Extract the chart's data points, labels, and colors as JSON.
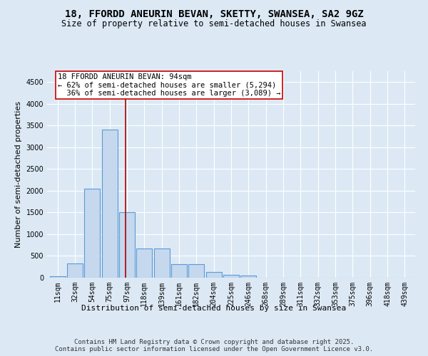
{
  "title1": "18, FFORDD ANEURIN BEVAN, SKETTY, SWANSEA, SA2 9GZ",
  "title2": "Size of property relative to semi-detached houses in Swansea",
  "xlabel": "Distribution of semi-detached houses by size in Swansea",
  "ylabel": "Number of semi-detached properties",
  "categories": [
    "11sqm",
    "32sqm",
    "54sqm",
    "75sqm",
    "97sqm",
    "118sqm",
    "139sqm",
    "161sqm",
    "182sqm",
    "204sqm",
    "225sqm",
    "246sqm",
    "268sqm",
    "289sqm",
    "311sqm",
    "332sqm",
    "353sqm",
    "375sqm",
    "396sqm",
    "418sqm",
    "439sqm"
  ],
  "values": [
    30,
    330,
    2050,
    3400,
    1500,
    670,
    670,
    310,
    310,
    130,
    70,
    50,
    5,
    5,
    0,
    0,
    0,
    0,
    0,
    0,
    0
  ],
  "bar_color": "#c5d8ee",
  "bar_edge_color": "#5b9bd5",
  "vline_x": 3.93,
  "vline_color": "#aa0000",
  "annotation_line1": "18 FFORDD ANEURIN BEVAN: 94sqm",
  "annotation_line2": "← 62% of semi-detached houses are smaller (5,294)",
  "annotation_line3": "  36% of semi-detached houses are larger (3,089) →",
  "annotation_box_color": "#ffffff",
  "annotation_box_edgecolor": "#cc0000",
  "ylim": [
    0,
    4750
  ],
  "yticks": [
    0,
    500,
    1000,
    1500,
    2000,
    2500,
    3000,
    3500,
    4000,
    4500
  ],
  "bg_color": "#dce9f5",
  "grid_color": "#ffffff",
  "footer": "Contains HM Land Registry data © Crown copyright and database right 2025.\nContains public sector information licensed under the Open Government Licence v3.0.",
  "title_fontsize": 10,
  "subtitle_fontsize": 8.5,
  "ylabel_fontsize": 8,
  "xlabel_fontsize": 8,
  "tick_fontsize": 7,
  "annot_fontsize": 7.5,
  "footer_fontsize": 6.5
}
